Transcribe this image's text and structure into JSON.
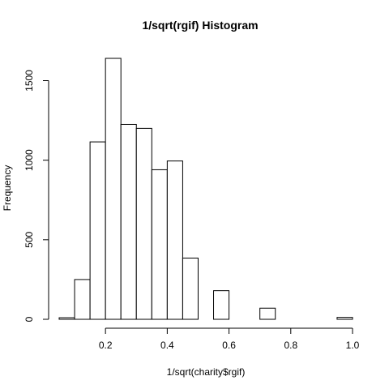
{
  "chart_data": {
    "type": "bar",
    "title": "1/sqrt(rgif) Histogram",
    "xlabel": "1/sqrt(charity$rgif)",
    "ylabel": "Frequency",
    "bin_edges": [
      0.05,
      0.1,
      0.15,
      0.2,
      0.25,
      0.3,
      0.35,
      0.4,
      0.45,
      0.5,
      0.55,
      0.6,
      0.65,
      0.7,
      0.75,
      0.8,
      0.85,
      0.9,
      0.95,
      1.0
    ],
    "values": [
      10,
      250,
      1115,
      1640,
      1225,
      1200,
      940,
      995,
      385,
      0,
      180,
      0,
      0,
      70,
      0,
      0,
      0,
      0,
      12
    ],
    "xlim": [
      0.05,
      1.0
    ],
    "ylim": [
      0,
      1640
    ],
    "x_ticks": [
      0.2,
      0.4,
      0.6,
      0.8,
      1.0
    ],
    "x_tick_labels": [
      "0.2",
      "0.4",
      "0.6",
      "0.8",
      "1.0"
    ],
    "y_ticks": [
      0,
      500,
      1000,
      1500
    ],
    "y_tick_labels": [
      "0",
      "500",
      "1000",
      "1500"
    ],
    "grid": false,
    "legend": "none"
  }
}
